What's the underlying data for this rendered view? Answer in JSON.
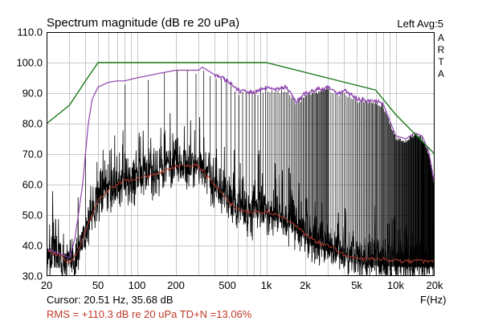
{
  "header": {
    "title": "Spectrum magnitude (dB re 20 uPa)",
    "status": "Left  Avg:5",
    "brand_letters": [
      "A",
      "R",
      "T",
      "A"
    ]
  },
  "footer": {
    "cursor_readout": "Cursor: 20.51 Hz, 35.68 dB",
    "rms_readout": "RMS = +110.3 dB re 20 uPa  TD+N =13.06%"
  },
  "chart_data": {
    "type": "line",
    "title": "Spectrum magnitude (dB re 20 uPa)",
    "xlabel": "F(Hz)",
    "ylabel": "",
    "x_scale": "log",
    "xlim": [
      20,
      20000
    ],
    "ylim": [
      30,
      110
    ],
    "grid": true,
    "x_ticks": [
      20,
      50,
      100,
      200,
      500,
      1000,
      2000,
      5000,
      10000,
      20000
    ],
    "x_tick_labels": [
      "20",
      "50",
      "100",
      "200",
      "500",
      "1k",
      "2k",
      "5k",
      "10k",
      "20k"
    ],
    "y_ticks": [
      30,
      40,
      50,
      60,
      70,
      80,
      90,
      100,
      110
    ],
    "y_tick_labels": [
      "30.0",
      "40.0",
      "50.0",
      "60.0",
      "70.0",
      "80.0",
      "90.0",
      "100.0",
      "110.0"
    ],
    "colors": {
      "peak_envelope": "#1a7a1a",
      "peak_hold": "#8e44ad",
      "average": "#b03a2e",
      "spectrum": "#000000",
      "harmonics": "#000000",
      "grid": "#c8c8c8"
    },
    "series": [
      {
        "x": [
          20,
          30,
          40,
          50,
          1000,
          7000,
          10000,
          20000
        ],
        "y": [
          80,
          86,
          94,
          100,
          100,
          91,
          83,
          70
        ]
      },
      {
        "x": [
          20,
          30,
          33,
          38,
          42,
          45,
          50,
          60,
          70,
          80,
          100,
          150,
          200,
          300,
          320,
          400,
          500,
          600,
          800,
          1000,
          1200,
          1400,
          1500,
          1700,
          2000,
          3000,
          3500,
          4000,
          5000,
          7000,
          8000,
          10000,
          12000,
          14000,
          16000,
          18000,
          20000
        ],
        "y": [
          39,
          36,
          42,
          60,
          80,
          88,
          92,
          93.5,
          94,
          94,
          95,
          96.5,
          97.5,
          97.5,
          98.5,
          96,
          94,
          91,
          90,
          92,
          91,
          92,
          91,
          87,
          90,
          92,
          90,
          91,
          88,
          87.5,
          86.5,
          76,
          75,
          77,
          76,
          71,
          60
        ]
      },
      {
        "x": [
          20,
          25,
          30,
          35,
          40,
          50,
          60,
          70,
          80,
          100,
          150,
          200,
          300,
          400,
          500,
          600,
          800,
          1000,
          1200,
          1500,
          2000,
          2500,
          3000,
          4000,
          5000,
          7000,
          10000,
          20000
        ],
        "y": [
          38,
          37,
          34,
          38,
          45,
          55,
          58,
          60,
          61,
          62,
          64,
          66,
          66,
          60,
          55,
          52,
          51,
          51,
          50,
          48,
          44,
          41,
          40,
          37,
          36,
          35.5,
          35,
          35
        ]
      }
    ]
  }
}
